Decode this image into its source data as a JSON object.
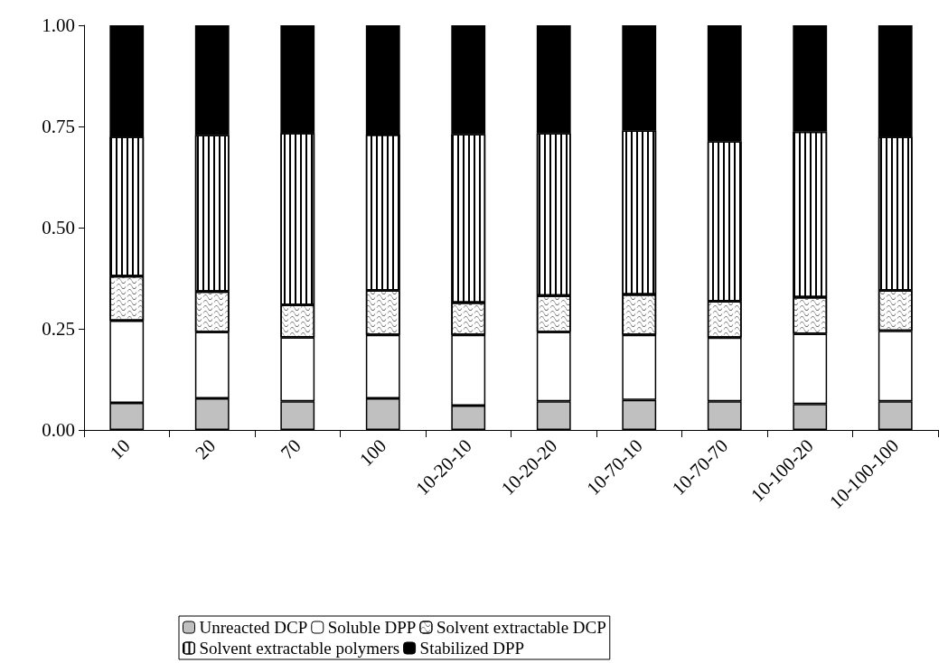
{
  "chart_data": {
    "type": "bar",
    "stacked": true,
    "categories": [
      "10",
      "20",
      "70",
      "100",
      "10-20-10",
      "10-20-20",
      "10-70-10",
      "10-70-70",
      "10-100-20",
      "10-100-100"
    ],
    "series": [
      {
        "name": "Unreacted DCP",
        "color": "#c0c0c0",
        "values": [
          0.067,
          0.078,
          0.071,
          0.078,
          0.06,
          0.071,
          0.074,
          0.071,
          0.064,
          0.071
        ]
      },
      {
        "name": "Soluble DPP",
        "color": "#ffffff",
        "values": [
          0.203,
          0.164,
          0.158,
          0.157,
          0.175,
          0.171,
          0.161,
          0.157,
          0.174,
          0.174
        ]
      },
      {
        "name": "Solvent extractable DCP",
        "color": "#ffffff",
        "values": [
          0.11,
          0.1,
          0.08,
          0.11,
          0.08,
          0.09,
          0.1,
          0.09,
          0.09,
          0.1
        ]
      },
      {
        "name": "Solvent extractable polymers",
        "color": "#ffffff",
        "values": [
          0.345,
          0.387,
          0.425,
          0.385,
          0.416,
          0.401,
          0.405,
          0.395,
          0.409,
          0.38
        ]
      },
      {
        "name": "Stabilized DPP",
        "color": "#000000",
        "values": [
          0.275,
          0.271,
          0.266,
          0.27,
          0.269,
          0.267,
          0.26,
          0.287,
          0.263,
          0.275
        ]
      }
    ],
    "ylim": [
      0,
      1
    ],
    "yticks": [
      {
        "value": 0,
        "label": "0.00"
      },
      {
        "value": 0.25,
        "label": "0.25"
      },
      {
        "value": 0.5,
        "label": "0.50"
      },
      {
        "value": 0.75,
        "label": "0.75"
      },
      {
        "value": 1,
        "label": "1.00"
      }
    ],
    "grid": false,
    "legend": "bottom"
  }
}
